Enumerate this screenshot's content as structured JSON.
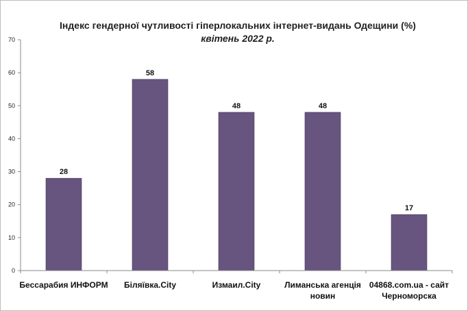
{
  "chart_data": {
    "type": "bar",
    "title": "Індекс гендерної чутливості гіперлокальних  інтернет-видань  Одещини (%)",
    "subtitle": "квітень 2022 р.",
    "categories": [
      [
        "Бессарабия ИНФОРМ"
      ],
      [
        "Біляївка.City"
      ],
      [
        "Измаил.City"
      ],
      [
        "Лиманська агенція",
        "новин"
      ],
      [
        "04868.com.ua - сайт",
        "Черноморска"
      ]
    ],
    "values": [
      28,
      58,
      48,
      48,
      17
    ],
    "value_labels": [
      "28",
      "58",
      "48",
      "48",
      "17"
    ],
    "ylim": [
      0,
      70
    ],
    "yticks": [
      0,
      10,
      20,
      30,
      40,
      50,
      60,
      70
    ],
    "bar_color": "#67547f",
    "grid": false,
    "legend": "none"
  }
}
